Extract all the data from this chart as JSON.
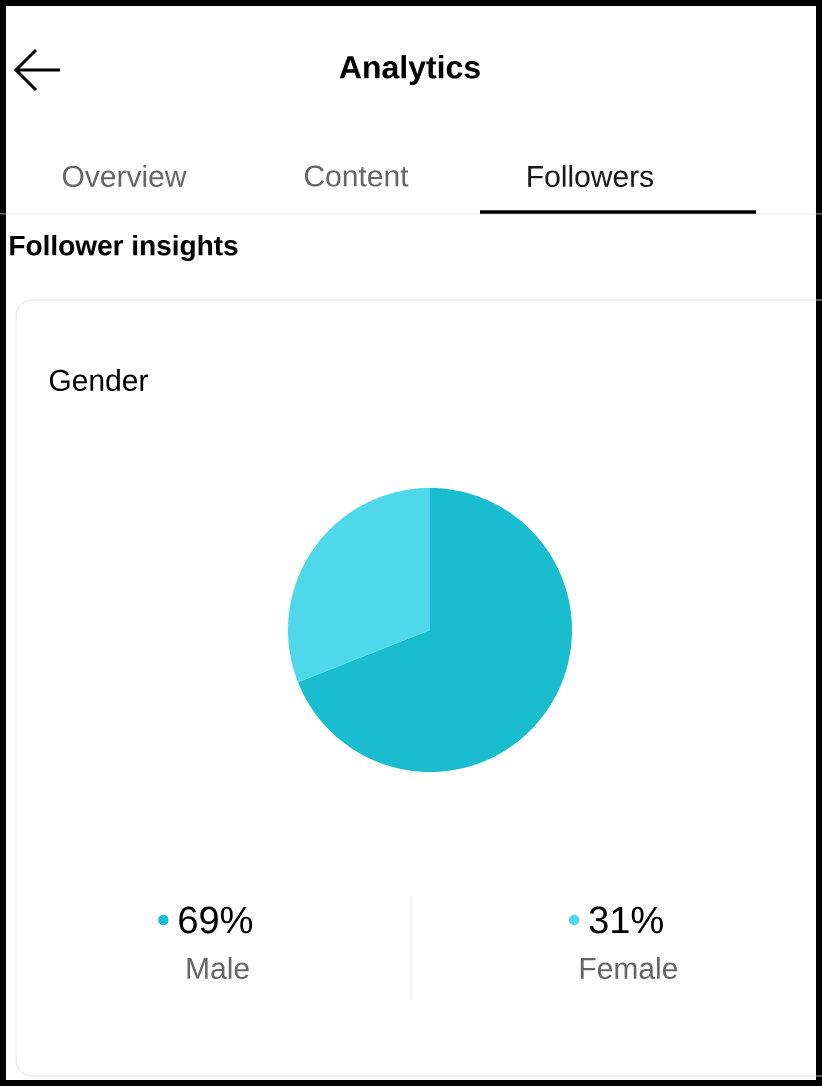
{
  "chart_data": {
    "type": "pie",
    "title": "Gender",
    "categories": [
      "Male",
      "Female"
    ],
    "values": [
      69,
      31
    ],
    "colors": [
      "#1abccf",
      "#4ed8e9"
    ],
    "value_labels": [
      "69%",
      "31%"
    ],
    "legend": "bottom",
    "annotations": [
      "Analytics",
      "Overview",
      "Content",
      "Followers",
      "Follower insights"
    ]
  }
}
